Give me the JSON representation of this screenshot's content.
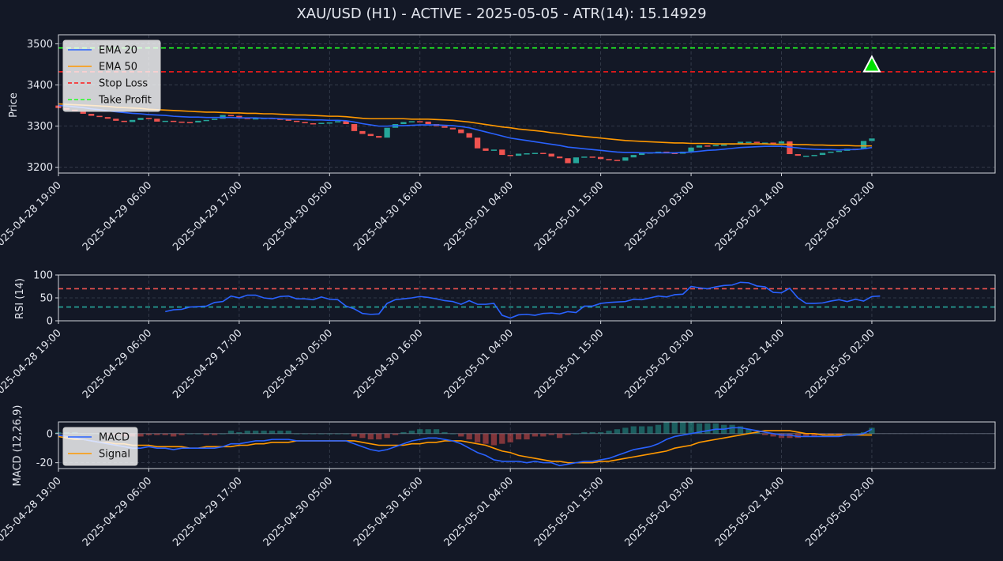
{
  "title": "XAU/USD (H1) - ACTIVE - 2025-05-05 - ATR(14): 15.14929",
  "colors": {
    "background": "#131826",
    "up": "#26a69a",
    "down": "#ef5350",
    "ema20": "#2962ff",
    "ema50": "#ff9800",
    "stop_loss": "#ff1a1a",
    "take_profit": "#22ff22",
    "rsi": "#2962ff",
    "rsi_overbought": "#ef5350",
    "rsi_oversold": "#26a69a",
    "macd": "#2962ff",
    "signal": "#ff9800",
    "signal_marker": "#00e000"
  },
  "chart_data": [
    {
      "type": "candlestick",
      "ylabel": "Price",
      "ylim": [
        3186,
        3522
      ],
      "yticks": [
        3200,
        3300,
        3400,
        3500
      ],
      "grid": true,
      "legend_position": "top-left",
      "x_tick_labels": [
        "2025-04-28 19:00",
        "2025-04-29 06:00",
        "2025-04-29 17:00",
        "2025-04-30 05:00",
        "2025-04-30 16:00",
        "2025-05-01 04:00",
        "2025-05-01 15:00",
        "2025-05-02 03:00",
        "2025-05-02 14:00",
        "2025-05-05 02:00"
      ],
      "x_tick_index": [
        0,
        11,
        22,
        33,
        44,
        55,
        66,
        77,
        88,
        99
      ],
      "x_index_range": [
        0,
        114
      ],
      "closes": [
        3344,
        3340,
        3337,
        3330,
        3325,
        3322,
        3318,
        3313,
        3310,
        3315,
        3320,
        3318,
        3311,
        3313,
        3311,
        3310,
        3309,
        3313,
        3315,
        3318,
        3327,
        3325,
        3320,
        3318,
        3319,
        3320,
        3318,
        3316,
        3313,
        3310,
        3307,
        3306,
        3308,
        3309,
        3312,
        3305,
        3288,
        3281,
        3276,
        3272,
        3296,
        3305,
        3310,
        3312,
        3311,
        3305,
        3300,
        3296,
        3292,
        3283,
        3272,
        3246,
        3240,
        3243,
        3230,
        3228,
        3233,
        3234,
        3235,
        3233,
        3226,
        3222,
        3210,
        3224,
        3226,
        3225,
        3220,
        3218,
        3216,
        3224,
        3230,
        3235,
        3236,
        3238,
        3235,
        3233,
        3238,
        3248,
        3253,
        3252,
        3254,
        3255,
        3258,
        3262,
        3262,
        3260,
        3260,
        3258,
        3263,
        3232,
        3228,
        3228,
        3230,
        3235,
        3238,
        3240,
        3245,
        3244,
        3264,
        3270
      ],
      "series": [
        {
          "name": "EMA 20",
          "values": [
            3350,
            3349,
            3347,
            3345,
            3342,
            3340,
            3337,
            3335,
            3333,
            3331,
            3330,
            3328,
            3327,
            3326,
            3324,
            3323,
            3322,
            3322,
            3321,
            3321,
            3321,
            3321,
            3320,
            3320,
            3320,
            3319,
            3319,
            3318,
            3317,
            3317,
            3316,
            3315,
            3315,
            3314,
            3314,
            3313,
            3310,
            3306,
            3303,
            3300,
            3300,
            3301,
            3301,
            3302,
            3303,
            3303,
            3303,
            3302,
            3301,
            3299,
            3296,
            3291,
            3286,
            3281,
            3276,
            3271,
            3268,
            3265,
            3262,
            3259,
            3256,
            3253,
            3249,
            3247,
            3245,
            3243,
            3241,
            3239,
            3237,
            3236,
            3236,
            3235,
            3235,
            3235,
            3235,
            3235,
            3236,
            3237,
            3239,
            3241,
            3242,
            3244,
            3246,
            3248,
            3249,
            3250,
            3251,
            3251,
            3251,
            3249,
            3247,
            3245,
            3244,
            3243,
            3243,
            3242,
            3243,
            3243,
            3245,
            3248
          ]
        },
        {
          "name": "EMA 50",
          "values": [
            3354,
            3353,
            3352,
            3351,
            3350,
            3349,
            3348,
            3346,
            3345,
            3344,
            3343,
            3341,
            3340,
            3339,
            3338,
            3337,
            3336,
            3335,
            3334,
            3334,
            3333,
            3332,
            3332,
            3331,
            3331,
            3330,
            3330,
            3329,
            3328,
            3327,
            3327,
            3326,
            3325,
            3324,
            3324,
            3323,
            3321,
            3319,
            3318,
            3318,
            3318,
            3318,
            3318,
            3317,
            3317,
            3317,
            3316,
            3315,
            3314,
            3312,
            3310,
            3307,
            3304,
            3301,
            3298,
            3296,
            3293,
            3291,
            3289,
            3287,
            3284,
            3282,
            3279,
            3277,
            3275,
            3273,
            3271,
            3269,
            3267,
            3265,
            3264,
            3263,
            3262,
            3261,
            3260,
            3259,
            3259,
            3258,
            3258,
            3258,
            3257,
            3257,
            3257,
            3257,
            3257,
            3257,
            3257,
            3256,
            3256,
            3256,
            3255,
            3255,
            3254,
            3254,
            3253,
            3253,
            3253,
            3252,
            3252,
            3252
          ]
        }
      ],
      "lines": [
        {
          "name": "Stop Loss",
          "value": 3432
        },
        {
          "name": "Take Profit",
          "value": 3490
        }
      ],
      "marker": {
        "index": 99,
        "value": 3448
      },
      "legend": [
        "EMA 20",
        "EMA 50",
        "Stop Loss",
        "Take Profit"
      ]
    },
    {
      "type": "line",
      "ylabel": "RSI (14)",
      "ylim": [
        0,
        100
      ],
      "yticks": [
        0,
        50,
        100
      ],
      "levels": [
        70,
        30
      ],
      "start_index": 13,
      "series": [
        {
          "values": [
            20,
            24,
            25,
            30,
            31,
            32,
            40,
            42,
            54,
            50,
            56,
            56,
            50,
            48,
            53,
            54,
            48,
            48,
            46,
            52,
            47,
            46,
            32,
            26,
            16,
            14,
            15,
            38,
            46,
            48,
            50,
            53,
            51,
            48,
            44,
            42,
            36,
            44,
            36,
            36,
            38,
            12,
            6,
            13,
            14,
            12,
            16,
            17,
            15,
            20,
            18,
            32,
            32,
            38,
            40,
            41,
            42,
            47,
            46,
            50,
            54,
            52,
            57,
            58,
            75,
            72,
            70,
            74,
            77,
            78,
            84,
            83,
            76,
            74,
            62,
            61,
            71,
            50,
            38,
            38,
            39,
            43,
            46,
            42,
            47,
            43,
            53,
            54
          ]
        }
      ]
    },
    {
      "type": "bar+line",
      "ylabel": "MACD (12,26,9)",
      "ylim": [
        -24,
        8
      ],
      "yticks": [
        -20,
        0
      ],
      "legend_position": "top-left",
      "legend": [
        "MACD",
        "Signal"
      ],
      "series": [
        {
          "name": "MACD",
          "values": [
            -1,
            -2,
            -3,
            -4,
            -5,
            -6,
            -7,
            -8,
            -9,
            -10,
            -10,
            -9,
            -10,
            -10,
            -11,
            -10,
            -10,
            -10,
            -10,
            -10,
            -9,
            -7,
            -7,
            -6,
            -5,
            -5,
            -4,
            -4,
            -4,
            -5,
            -5,
            -5,
            -5,
            -5,
            -5,
            -5,
            -7,
            -9,
            -11,
            -12,
            -11,
            -9,
            -7,
            -5,
            -4,
            -3,
            -3,
            -4,
            -5,
            -7,
            -10,
            -13,
            -15,
            -18,
            -19,
            -19,
            -19,
            -20,
            -19,
            -20,
            -20,
            -22,
            -21,
            -20,
            -19,
            -19,
            -18,
            -17,
            -15,
            -13,
            -11,
            -10,
            -9,
            -7,
            -4,
            -2,
            -1,
            0,
            1,
            2,
            3,
            3,
            4,
            4,
            3,
            2,
            1,
            0,
            -1,
            -1,
            -2,
            -2,
            -2,
            -2,
            -2,
            -2,
            -1,
            -1,
            0,
            3
          ]
        },
        {
          "name": "Signal",
          "values": [
            -2,
            -3,
            -4,
            -4,
            -5,
            -6,
            -6,
            -7,
            -7,
            -8,
            -8,
            -8,
            -9,
            -9,
            -9,
            -9,
            -10,
            -10,
            -9,
            -9,
            -9,
            -9,
            -8,
            -8,
            -7,
            -7,
            -6,
            -6,
            -6,
            -5,
            -5,
            -5,
            -5,
            -5,
            -5,
            -5,
            -5,
            -6,
            -7,
            -8,
            -8,
            -8,
            -8,
            -7,
            -7,
            -6,
            -6,
            -5,
            -5,
            -5,
            -6,
            -7,
            -8,
            -10,
            -12,
            -13,
            -15,
            -16,
            -17,
            -18,
            -19,
            -19,
            -20,
            -20,
            -20,
            -20,
            -19,
            -19,
            -18,
            -17,
            -16,
            -15,
            -14,
            -13,
            -12,
            -10,
            -9,
            -8,
            -6,
            -5,
            -4,
            -3,
            -2,
            -1,
            0,
            1,
            2,
            2,
            2,
            2,
            1,
            0,
            0,
            -1,
            -1,
            -1,
            -1,
            -1,
            -1,
            -1
          ]
        }
      ]
    }
  ]
}
